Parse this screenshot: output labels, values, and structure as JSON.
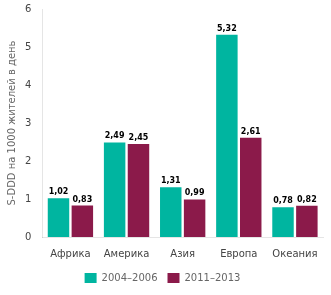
{
  "chart_data": {
    "type": "bar",
    "categories": [
      "Африка",
      "Америка",
      "Азия",
      "Европа",
      "Океания"
    ],
    "series": [
      {
        "name": "2004–2006",
        "color": "#00b5a0",
        "values": [
          1.02,
          2.49,
          1.31,
          5.32,
          0.78
        ],
        "value_labels": [
          "1,02",
          "2,49",
          "1,31",
          "5,32",
          "0,78"
        ]
      },
      {
        "name": "2011–2013",
        "color": "#8b1a4a",
        "values": [
          0.83,
          2.45,
          0.99,
          2.61,
          0.82
        ],
        "value_labels": [
          "0,83",
          "2,45",
          "0,99",
          "2,61",
          "0,82"
        ]
      }
    ],
    "ylabel": "S-DDD на 1000 жителей в день",
    "ylim": [
      0,
      6
    ],
    "yticks": [
      0,
      1,
      2,
      3,
      4,
      5,
      6
    ],
    "grid": false,
    "legend": "bottom",
    "data_labels": true
  }
}
